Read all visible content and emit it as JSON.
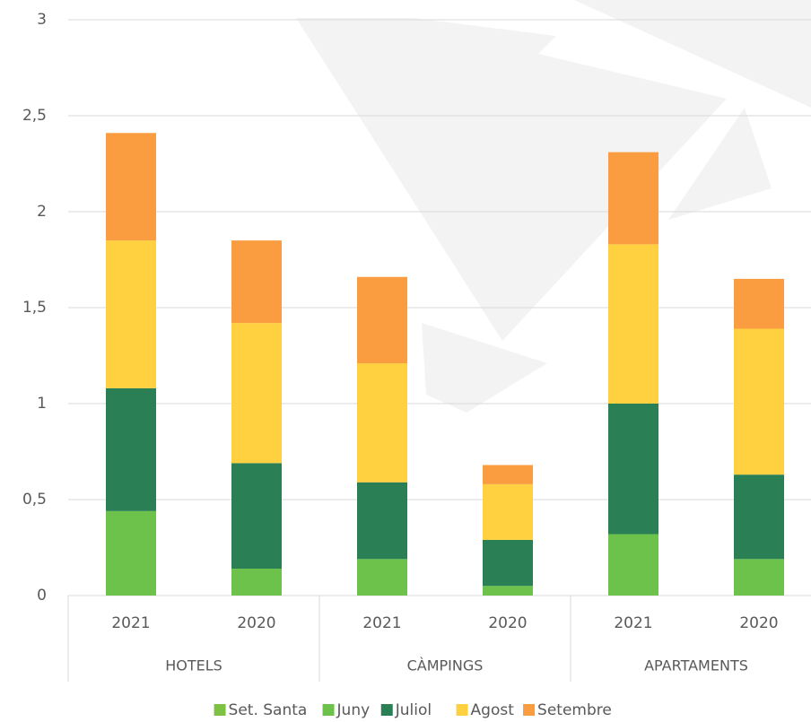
{
  "chart_data": {
    "type": "stacked_bar",
    "categories": [
      "2021",
      "2020",
      "2021",
      "2020",
      "2021",
      "2020"
    ],
    "groups": [
      "HOTELS",
      "CÀMPINGS",
      "APARTAMENTS"
    ],
    "series": [
      {
        "name": "Set. Santa",
        "color": "#7dc242",
        "values": [
          0,
          0,
          0,
          0,
          0,
          0
        ]
      },
      {
        "name": "Juny",
        "color": "#6cc24a",
        "values": [
          0.44,
          0.14,
          0.19,
          0.05,
          0.32,
          0.19
        ]
      },
      {
        "name": "Juliol",
        "color": "#2a7f55",
        "values": [
          0.64,
          0.55,
          0.4,
          0.24,
          0.68,
          0.44
        ]
      },
      {
        "name": "Agost",
        "color": "#ffd040",
        "values": [
          0.77,
          0.73,
          0.62,
          0.29,
          0.83,
          0.76
        ]
      },
      {
        "name": "Setembre",
        "color": "#f99d40",
        "values": [
          0.56,
          0.43,
          0.45,
          0.1,
          0.48,
          0.26
        ]
      }
    ],
    "ylim": [
      0,
      3
    ],
    "yticks": [
      0,
      {
        "value": 0.5,
        "label": "0,5"
      },
      1,
      {
        "value": 1.5,
        "label": "1,5"
      },
      2,
      {
        "value": 2.5,
        "label": "2,5"
      },
      3
    ],
    "grid": true,
    "legend": "bottom"
  }
}
